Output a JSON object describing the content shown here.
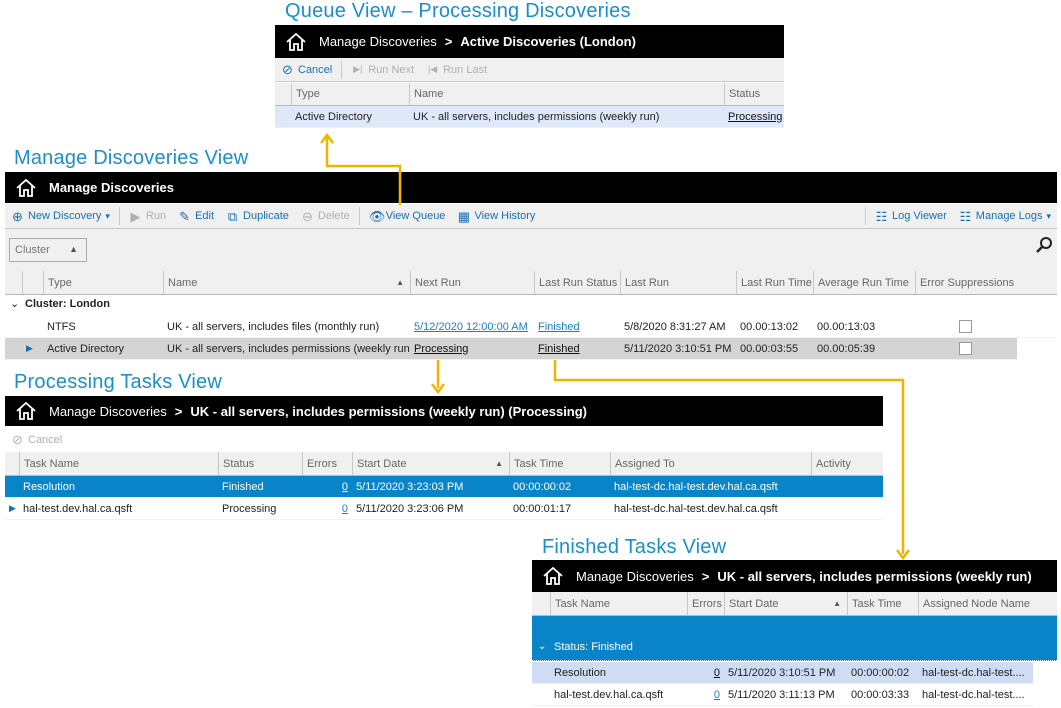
{
  "colors": {
    "accent": "#1a8fc9",
    "arrow": "#f0b400",
    "selected_row": "#0a84c8",
    "bar": "#000000"
  },
  "queue_view": {
    "title": "Queue View – Processing Discoveries",
    "breadcrumb": {
      "root": "Manage Discoveries",
      "current": "Active Discoveries (London)"
    },
    "toolbar": [
      {
        "label": "Cancel",
        "icon": "cancel-icon",
        "enabled": true
      },
      {
        "label": "Run Next",
        "icon": "run-next-icon",
        "enabled": false
      },
      {
        "label": "Run Last",
        "icon": "run-last-icon",
        "enabled": false
      }
    ],
    "columns": [
      "",
      "Type",
      "Name",
      "Status"
    ],
    "rows": [
      [
        "",
        "Active Directory",
        "UK - all servers, includes permissions (weekly run)",
        "Processing"
      ]
    ]
  },
  "manage_view": {
    "title": "Manage Discoveries View",
    "breadcrumb": {
      "root": "Manage Discoveries"
    },
    "toolbar_left": [
      {
        "label": "New Discovery",
        "icon": "plus-circle-icon",
        "enabled": true,
        "dropdown": true
      },
      {
        "label": "Run",
        "icon": "play-icon",
        "enabled": false
      },
      {
        "label": "Edit",
        "icon": "pencil-icon",
        "enabled": true
      },
      {
        "label": "Duplicate",
        "icon": "duplicate-icon",
        "enabled": true
      },
      {
        "label": "Delete",
        "icon": "minus-circle-icon",
        "enabled": false
      },
      {
        "label": "View Queue",
        "icon": "eye-icon",
        "enabled": true
      },
      {
        "label": "View History",
        "icon": "calendar-icon",
        "enabled": true
      }
    ],
    "toolbar_right": [
      {
        "label": "Log Viewer",
        "icon": "document-icon",
        "enabled": true
      },
      {
        "label": "Manage Logs",
        "icon": "document-icon",
        "enabled": true,
        "dropdown": true
      }
    ],
    "group_by": "Cluster",
    "columns": [
      "",
      "",
      "Type",
      "Name",
      "Next Run",
      "Last Run Status",
      "Last Run",
      "Last Run Time",
      "Average Run Time",
      "Error Suppressions"
    ],
    "group_label": "Cluster: London",
    "rows": [
      [
        "",
        "",
        "NTFS",
        "UK - all servers, includes files (monthly run)",
        "5/12/2020 12:00:00 AM",
        "Finished",
        "5/8/2020 8:31:27 AM",
        "00.00:13:02",
        "00.00:13:03",
        false
      ],
      [
        "",
        "▶",
        "Active Directory",
        "UK - all servers, includes permissions (weekly run)",
        "Processing",
        "Finished",
        "5/11/2020 3:10:51 PM",
        "00.00:03:55",
        "00.00:05:39",
        false
      ]
    ]
  },
  "processing_view": {
    "title": "Processing Tasks View",
    "breadcrumb": {
      "root": "Manage Discoveries",
      "current": "UK - all servers, includes permissions (weekly run) (Processing)"
    },
    "toolbar": [
      {
        "label": "Cancel",
        "icon": "cancel-icon",
        "enabled": false
      }
    ],
    "columns": [
      "",
      "Task Name",
      "Status",
      "Errors",
      "Start Date",
      "Task Time",
      "Assigned To",
      "Activity"
    ],
    "rows": [
      [
        "",
        "Resolution",
        "Finished",
        "0",
        "5/11/2020 3:23:03 PM",
        "00:00:00:02",
        "hal-test-dc.hal-test.dev.hal.ca.qsft",
        ""
      ],
      [
        "▶",
        "hal-test.dev.hal.ca.qsft",
        "Processing",
        "0",
        "5/11/2020 3:23:06 PM",
        "00:00:01:17",
        "hal-test-dc.hal-test.dev.hal.ca.qsft",
        ""
      ]
    ]
  },
  "finished_view": {
    "title": "Finished Tasks View",
    "breadcrumb": {
      "root": "Manage Discoveries",
      "current": "UK - all servers, includes permissions (weekly run)"
    },
    "columns": [
      "",
      "Task Name",
      "Errors",
      "Start Date",
      "Task Time",
      "Assigned Node Name"
    ],
    "group_label": "Status: Finished",
    "rows": [
      [
        "",
        "Resolution",
        "0",
        "5/11/2020 3:10:51 PM",
        "00:00:00:02",
        "hal-test-dc.hal-test...."
      ],
      [
        "",
        "hal-test.dev.hal.ca.qsft",
        "0",
        "5/11/2020 3:11:13 PM",
        "00:00:03:33",
        "hal-test-dc.hal-test...."
      ]
    ]
  }
}
